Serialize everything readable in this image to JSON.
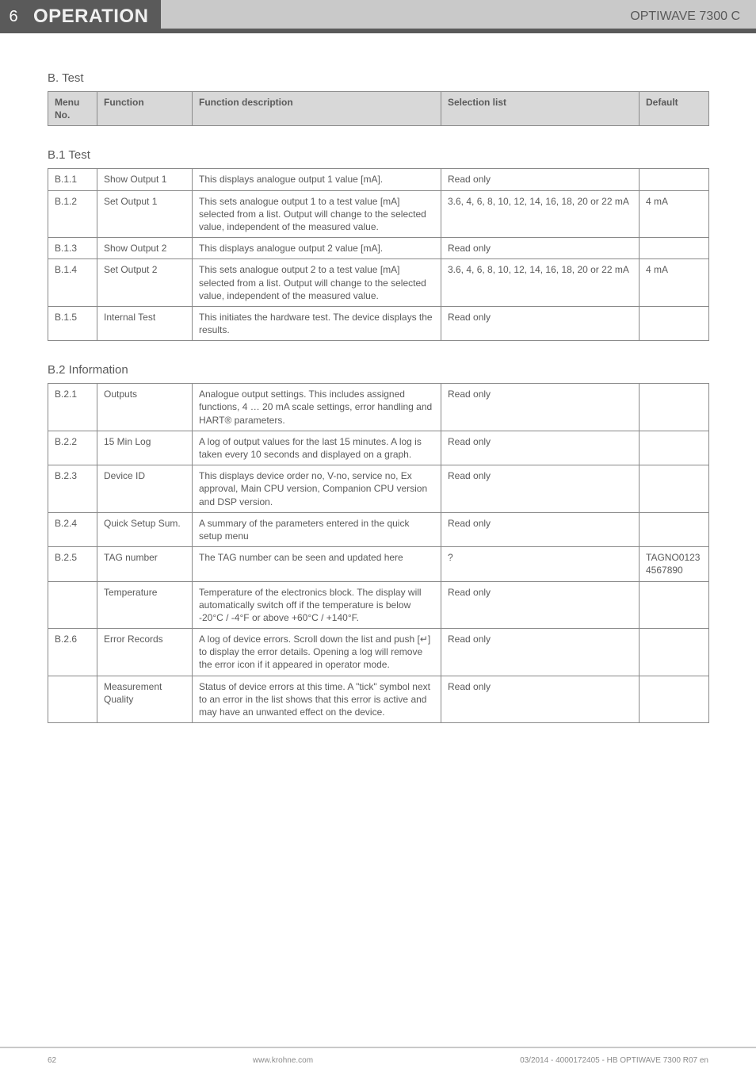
{
  "header": {
    "section_number": "6",
    "section_title": "OPERATION",
    "product": "OPTIWAVE 7300 C"
  },
  "top_table": {
    "title": "B. Test",
    "columns": [
      "Menu No.",
      "Function",
      "Function description",
      "Selection list",
      "Default"
    ]
  },
  "b1": {
    "title": "B.1 Test",
    "rows": [
      {
        "menu": "B.1.1",
        "func": "Show Output 1",
        "desc": "This displays analogue output 1 value [mA].",
        "sel": "Read only",
        "def": ""
      },
      {
        "menu": "B.1.2",
        "func": "Set Output 1",
        "desc": "This sets analogue output 1 to a test value [mA] selected from a list. Output will change to the selected value, independent of the measured value.",
        "sel": "3.6, 4, 6, 8, 10, 12, 14, 16, 18, 20 or 22 mA",
        "def": "4 mA"
      },
      {
        "menu": "B.1.3",
        "func": "Show Output 2",
        "desc": "This displays analogue output 2 value [mA].",
        "sel": "Read only",
        "def": ""
      },
      {
        "menu": "B.1.4",
        "func": "Set Output 2",
        "desc": "This sets analogue output 2 to a test value [mA] selected from a list. Output will change to the selected value, independent of the measured value.",
        "sel": "3.6, 4, 6, 8, 10, 12, 14, 16, 18, 20 or 22 mA",
        "def": "4 mA"
      },
      {
        "menu": "B.1.5",
        "func": "Internal Test",
        "desc": "This initiates the hardware test. The device displays the results.",
        "sel": "Read only",
        "def": ""
      }
    ]
  },
  "b2": {
    "title": "B.2 Information",
    "rows": [
      {
        "menu": "B.2.1",
        "func": "Outputs",
        "desc": "Analogue output settings. This includes assigned functions, 4 … 20 mA scale settings, error handling and HART® parameters.",
        "sel": "Read only",
        "def": ""
      },
      {
        "menu": "B.2.2",
        "func": "15 Min Log",
        "desc": "A log of output values for the last 15 minutes. A log is taken every 10 seconds and displayed on a graph.",
        "sel": "Read only",
        "def": ""
      },
      {
        "menu": "B.2.3",
        "func": "Device ID",
        "desc": "This displays device order no, V-no, service no, Ex approval, Main CPU version, Companion CPU version and DSP version.",
        "sel": "Read only",
        "def": ""
      },
      {
        "menu": "B.2.4",
        "func": "Quick Setup Sum.",
        "desc": "A summary of the parameters entered in the quick setup menu",
        "sel": "Read only",
        "def": ""
      },
      {
        "menu": "B.2.5",
        "func": "TAG number",
        "desc": "The TAG number can be seen and updated here",
        "sel": "?",
        "def": "TAGNO0123 4567890"
      },
      {
        "menu": "",
        "func": "Temperature",
        "desc": "Temperature of the electronics block. The display will automatically switch off if the temperature is below -20°C / -4°F or above +60°C / +140°F.",
        "sel": "Read only",
        "def": ""
      },
      {
        "menu": "B.2.6",
        "func": "Error Records",
        "desc": "A log of device errors.  Scroll down the list and push [↵] to display the error details. Opening a log will remove the error icon if it appeared in operator mode.",
        "sel": "Read only",
        "def": ""
      },
      {
        "menu": "",
        "func": "Measurement Quality",
        "desc": "Status of device errors at this time. A \"tick\" symbol next to an error in the list shows that this error is active and may have an unwanted effect on the device.",
        "sel": "Read only",
        "def": ""
      }
    ]
  },
  "footer": {
    "page": "62",
    "url": "www.krohne.com",
    "docid": "03/2014 - 4000172405 - HB OPTIWAVE 7300 R07 en"
  }
}
